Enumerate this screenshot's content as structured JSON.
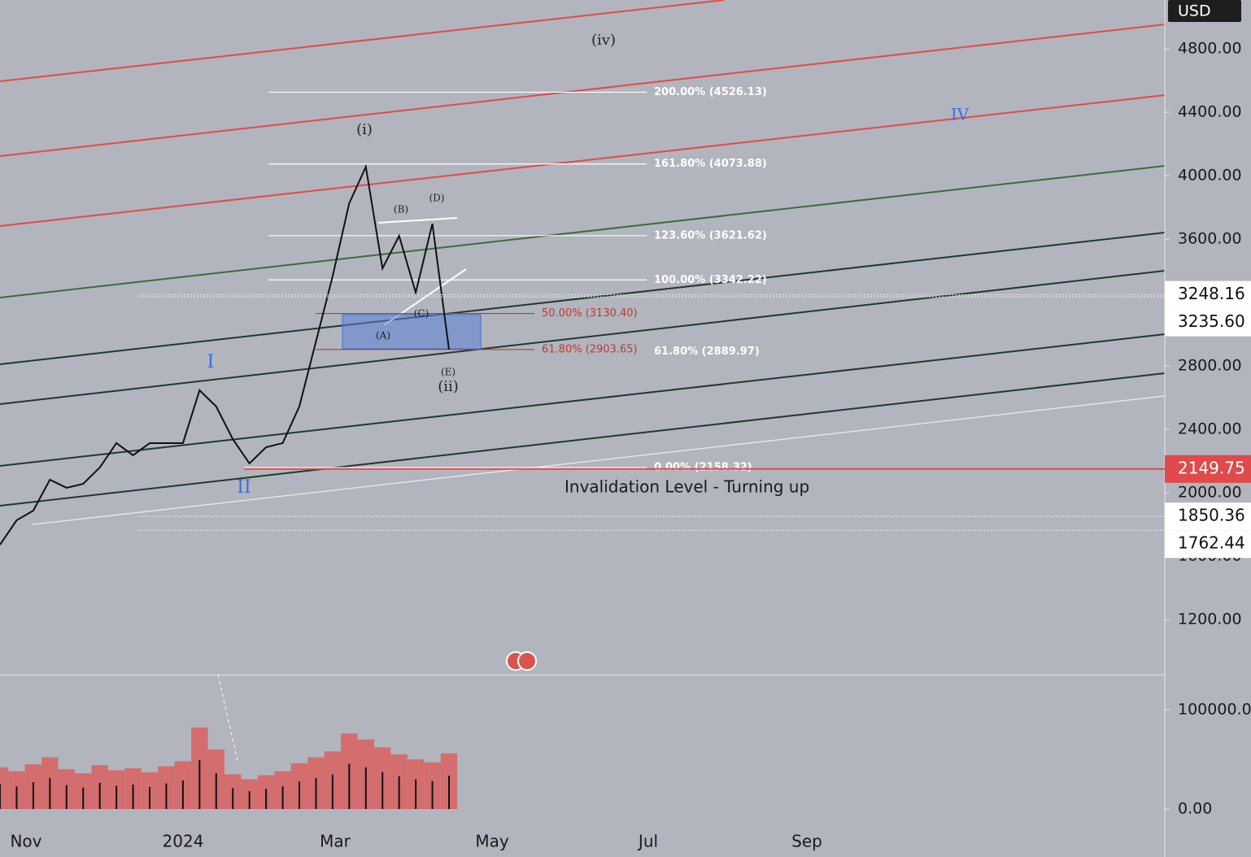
{
  "chart_data": {
    "type": "line",
    "y_axis_label": "USD",
    "ylim": [
      851,
      5108
    ],
    "yticks": [
      {
        "value": 1200,
        "label": "1200.00"
      },
      {
        "value": 1600,
        "label": "1600.00"
      },
      {
        "value": 2000,
        "label": "2000.00"
      },
      {
        "value": 2400,
        "label": "2400.00"
      },
      {
        "value": 2800,
        "label": "2800.00"
      },
      {
        "value": 3600,
        "label": "3600.00"
      },
      {
        "value": 4000,
        "label": "4000.00"
      },
      {
        "value": 4400,
        "label": "4400.00"
      },
      {
        "value": 4800,
        "label": "4800.00"
      }
    ],
    "x_labels": [
      "Nov",
      "2024",
      "Mar",
      "May",
      "Jul",
      "Sep"
    ],
    "series": [
      {
        "color": "#111111",
        "values": [
          1672,
          1826,
          1887,
          2082,
          2031,
          2056,
          2159,
          2313,
          2236,
          2313,
          2313,
          2313,
          2646,
          2544,
          2338,
          2185,
          2287,
          2313,
          2544,
          2954,
          3364,
          3826,
          4056,
          3415,
          3620,
          3262,
          3697,
          2903
        ]
      }
    ],
    "volume": {
      "color": "#111111",
      "area_color": "#d9605f",
      "ylim": [
        0,
        135000
      ],
      "yticks": [
        {
          "value": 0,
          "label": "0.00"
        },
        {
          "value": 100000,
          "label": "100000.0"
        }
      ],
      "values": [
        42000,
        38000,
        45000,
        52000,
        40000,
        36000,
        44000,
        39000,
        41000,
        37000,
        43000,
        48000,
        82000,
        60000,
        35000,
        30000,
        34000,
        38000,
        46000,
        52000,
        58000,
        76000,
        70000,
        62000,
        55000,
        50000,
        47000,
        56000
      ]
    },
    "price_tags": [
      3248.16,
      {
        "value": 3235.6,
        "label": "3235.60"
      },
      2149.75,
      1850.36,
      1762.44
    ],
    "price_tag_colors": [
      "#ffffff",
      "#ffffff",
      "#e04a4a",
      "#ffffff",
      "#ffffff"
    ],
    "fib_levels": [
      {
        "value": 4526.13,
        "label": "200.00% (4526.13)",
        "color": "#ffffff"
      },
      {
        "value": 4073.88,
        "label": "161.80% (4073.88)",
        "color": "#ffffff"
      },
      {
        "value": 3621.62,
        "label": "123.60% (3621.62)",
        "color": "#ffffff"
      },
      {
        "value": 3342.22,
        "label": "100.00% (3342.22)",
        "color": "#ffffff"
      },
      {
        "value": 3130.4,
        "label": "50.00% (3130.40)",
        "color": "#c0392b"
      },
      {
        "value": 2903.65,
        "label": "61.80% (2903.65)",
        "color": "#c0392b"
      },
      {
        "value": 2889.97,
        "label": "61.80% (2889.97)",
        "color": "#ffffff"
      },
      {
        "value": 2158.32,
        "label": "0.00% (2158.32)",
        "color": "#ffffff"
      }
    ],
    "wave_labels": [
      {
        "label": "(iv)",
        "color": "#222222"
      },
      {
        "label": "(i)",
        "color": "#222222"
      },
      {
        "label": "IV",
        "color": "#3a6fd8"
      },
      {
        "label": "I",
        "color": "#3a6fd8"
      },
      {
        "label": "II",
        "color": "#3a6fd8"
      },
      {
        "label": "(ii)",
        "color": "#222222"
      },
      {
        "label": "(A)",
        "color": "#222222"
      },
      {
        "label": "(B)",
        "color": "#222222"
      },
      {
        "label": "(C)",
        "color": "#222222"
      },
      {
        "label": "(D)",
        "color": "#222222"
      },
      {
        "label": "(E)",
        "color": "#222222"
      }
    ],
    "annotation": "Invalidation Level - Turning up"
  }
}
